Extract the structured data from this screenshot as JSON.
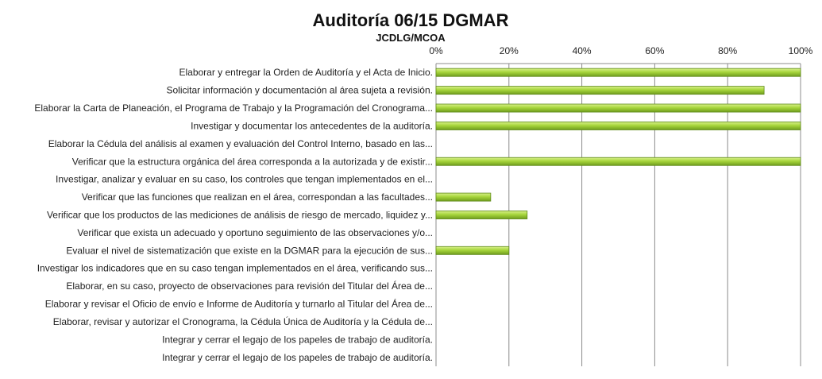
{
  "chart_data": {
    "type": "bar",
    "orientation": "horizontal",
    "title": "Auditoría 06/15 DGMAR",
    "subtitle": "JCDLG/MCOA",
    "xlabel": "",
    "ylabel": "",
    "xlim": [
      0,
      100
    ],
    "x_ticks": [
      "0%",
      "20%",
      "40%",
      "60%",
      "80%",
      "100%"
    ],
    "x_axis_position": "top",
    "grid": true,
    "legend": "none",
    "bar_color": "#9acd32",
    "bar_edge_color": "#5f8a1a",
    "categories": [
      "Elaborar y entregar la Orden de Auditoría y el Acta de Inicio.",
      "Solicitar información y documentación al área sujeta a revisión.",
      "Elaborar la Carta de Planeación, el Programa de Trabajo y la Programación del Cronograma...",
      "Investigar y documentar los antecedentes de la auditoría.",
      "Elaborar la Cédula del análisis al examen y evaluación del Control Interno, basado en las...",
      "Verificar que la estructura orgánica del área corresponda a la autorizada y de existir...",
      "Investigar, analizar y evaluar en su caso, los controles que tengan implementados en el...",
      "Verificar que las funciones que realizan en el área, correspondan a las facultades...",
      "Verificar que los productos de las mediciones de análisis de riesgo de mercado, liquidez y...",
      "Verificar que exista un adecuado y oportuno seguimiento de las observaciones y/o...",
      "Evaluar el nivel de sistematización que existe en la DGMAR para la ejecución de sus...",
      "Investigar los indicadores que en su caso tengan implementados en el área, verificando sus...",
      "Elaborar, en su caso, proyecto de observaciones para revisión del Titular del Área de...",
      "Elaborar y revisar el Oficio de envío e Informe de Auditoría y turnarlo al Titular del Área de...",
      "Elaborar, revisar y autorizar el Cronograma, la Cédula Única de Auditoría y la Cédula de...",
      "Integrar y cerrar el legajo de los papeles de trabajo de auditoría.",
      "Integrar y cerrar el legajo de los papeles de trabajo de auditoría."
    ],
    "values": [
      100,
      90,
      100,
      100,
      0,
      100,
      0,
      15,
      25,
      0,
      20,
      0,
      0,
      0,
      0,
      0,
      0
    ]
  }
}
